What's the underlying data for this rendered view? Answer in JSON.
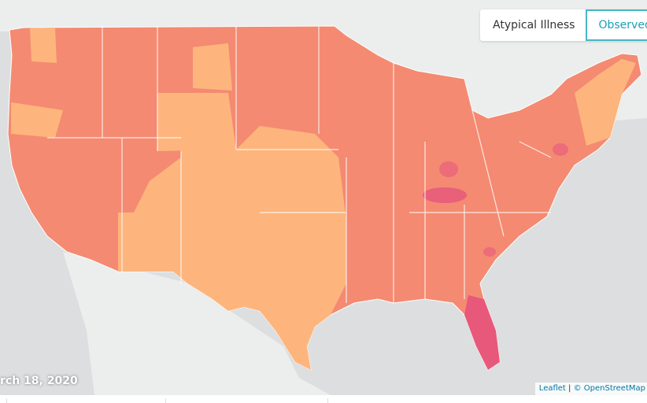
{
  "controls": {
    "buttons": [
      "Atypical Illness",
      "Observed"
    ]
  },
  "map": {
    "date": "rch 18, 2020",
    "attribution": {
      "leaflet": "Leaflet",
      "separator": "|",
      "osm": "© OpenStreetMap"
    }
  }
}
